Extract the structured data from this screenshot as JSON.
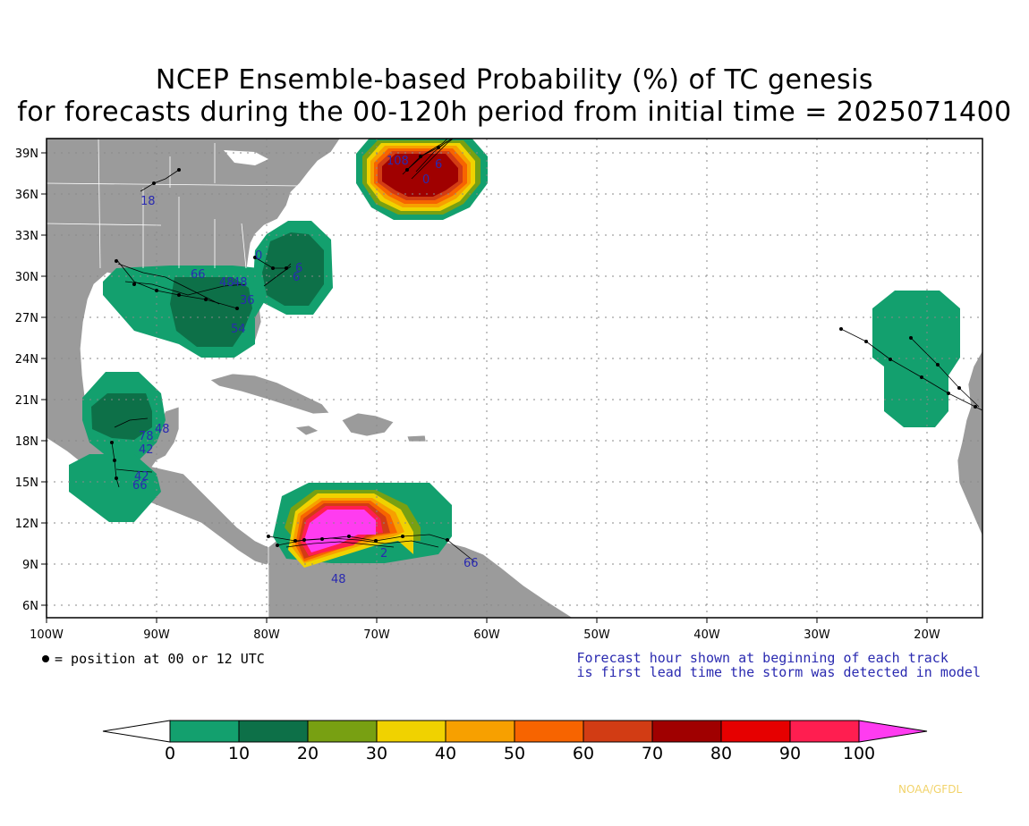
{
  "title_line1": "NCEP Ensemble-based Probability (%) of TC genesis",
  "title_line2": "for forecasts during the 00-120h period from initial time = 2025071400",
  "map": {
    "lon_labels": [
      "100W",
      "90W",
      "80W",
      "70W",
      "60W",
      "50W",
      "40W",
      "30W",
      "20W"
    ],
    "lat_labels": [
      "39N",
      "36N",
      "33N",
      "30N",
      "27N",
      "24N",
      "21N",
      "18N",
      "15N",
      "12N",
      "9N",
      "6N"
    ],
    "colors": {
      "land": "#9b9b9b",
      "ocean": "#ffffff"
    }
  },
  "legend_left": "= position at 00 or 12 UTC",
  "legend_right_line1": "Forecast hour shown at beginning of each track",
  "legend_right_line2": "is first lead time the storm was detected in model",
  "colorbar": {
    "ticks": [
      "0",
      "10",
      "20",
      "30",
      "40",
      "50",
      "60",
      "70",
      "80",
      "90",
      "100"
    ],
    "colors": [
      "#ffffff",
      "#13a06e",
      "#0d7048",
      "#78a012",
      "#f0d200",
      "#f7a000",
      "#f76400",
      "#d23c14",
      "#a00000",
      "#e60000",
      "#ff1e50",
      "#ff3cf0"
    ]
  },
  "track_labels": [
    "18",
    "66",
    "48",
    "48",
    "36",
    "54",
    "0",
    "6",
    "6",
    "108",
    "6",
    "0",
    "48",
    "78",
    "42",
    "42",
    "66",
    "48",
    "66",
    "2"
  ],
  "credit": "NOAA/GFDL"
}
